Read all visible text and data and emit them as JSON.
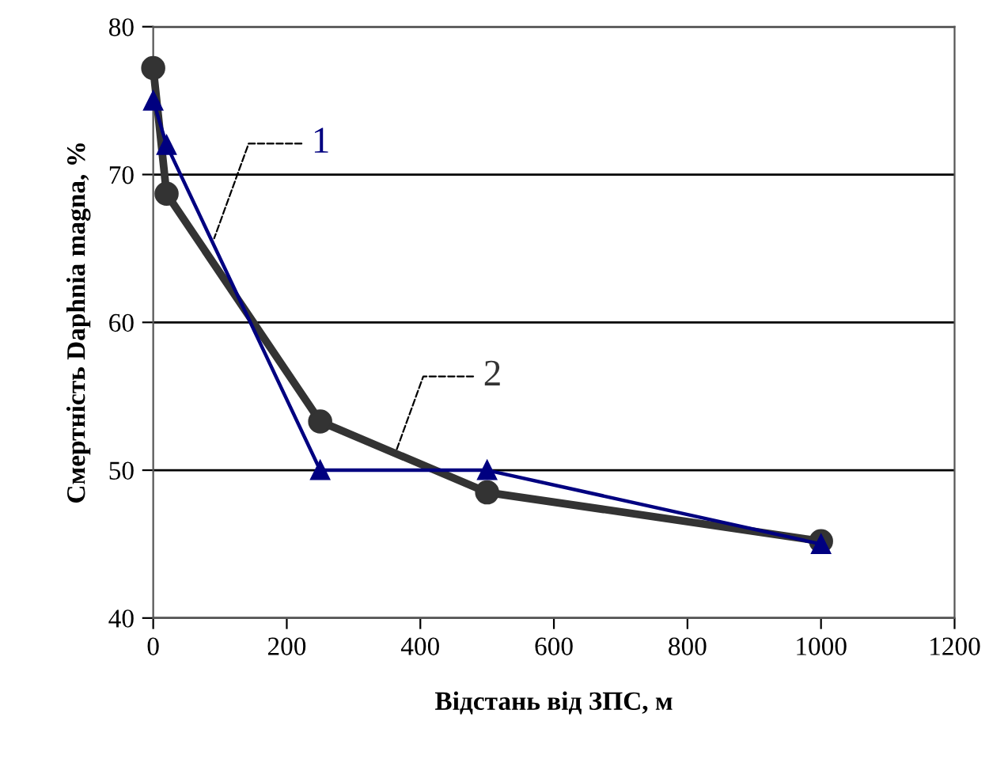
{
  "chart_data": {
    "type": "line",
    "xlabel": "Відстань від ЗПС, м",
    "ylabel": "Смертність Daphnia magna, %",
    "xlim": [
      0,
      1200
    ],
    "xticks": [
      0,
      200,
      400,
      600,
      800,
      1000,
      1200
    ],
    "ylim": [
      40,
      80
    ],
    "yticks": [
      40,
      50,
      60,
      70,
      80
    ],
    "grid": "y",
    "legend": false,
    "series": [
      {
        "name": "1",
        "color": "#000080",
        "marker": "triangle",
        "x": [
          0,
          20,
          250,
          500,
          1000
        ],
        "values": [
          75,
          72,
          50,
          50,
          45
        ]
      },
      {
        "name": "2",
        "color": "#333333",
        "marker": "circle",
        "x": [
          0,
          20,
          250,
          500,
          1000
        ],
        "values": [
          77.2,
          68.7,
          53.3,
          48.5,
          45.2
        ]
      }
    ]
  }
}
